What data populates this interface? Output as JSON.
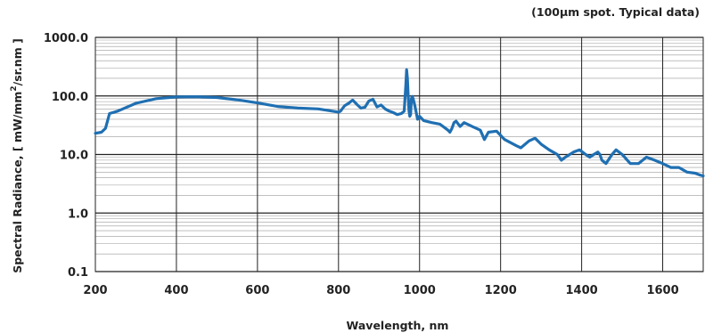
{
  "chart_data": {
    "type": "line",
    "annotation": "(100µm spot. Typical data)",
    "xlabel": "Wavelength, nm",
    "ylabel": {
      "main": "Spectral Radiance, [ mW/mm",
      "sup": "2",
      "tail": "/sr.nm ]"
    },
    "xlim": [
      200,
      1700
    ],
    "ylim": [
      0.1,
      1000
    ],
    "y_scale": "log",
    "grid": true,
    "x_ticks": [
      200,
      400,
      600,
      800,
      1000,
      1200,
      1400,
      1600
    ],
    "y_ticks": [
      {
        "value": 0.1,
        "label": "0.1"
      },
      {
        "value": 1,
        "label": "1.0"
      },
      {
        "value": 10,
        "label": "10.0"
      },
      {
        "value": 100,
        "label": "100.0"
      },
      {
        "value": 1000,
        "label": "1000.0"
      }
    ],
    "series": [
      {
        "color": "#1f6fb2",
        "x": [
          200,
          215,
          225,
          235,
          255,
          300,
          350,
          400,
          450,
          500,
          550,
          600,
          650,
          700,
          750,
          800,
          805,
          815,
          825,
          835,
          845,
          855,
          865,
          875,
          885,
          895,
          905,
          915,
          925,
          935,
          945,
          955,
          962,
          966,
          968,
          970,
          972,
          974,
          976,
          978,
          980,
          982,
          984,
          988,
          995,
          1000,
          1010,
          1030,
          1050,
          1070,
          1075,
          1080,
          1085,
          1090,
          1100,
          1110,
          1130,
          1150,
          1160,
          1170,
          1190,
          1210,
          1240,
          1250,
          1270,
          1285,
          1300,
          1320,
          1340,
          1350,
          1360,
          1380,
          1395,
          1410,
          1420,
          1430,
          1440,
          1445,
          1450,
          1460,
          1475,
          1480,
          1485,
          1500,
          1520,
          1540,
          1560,
          1580,
          1600,
          1620,
          1640,
          1660,
          1680,
          1690,
          1700
        ],
        "y": [
          23,
          24,
          28,
          50,
          55,
          75,
          90,
          96,
          97,
          94,
          86,
          76,
          66,
          62,
          60,
          53,
          55,
          68,
          75,
          85,
          72,
          62,
          64,
          82,
          88,
          65,
          70,
          60,
          55,
          52,
          48,
          50,
          55,
          150,
          280,
          200,
          100,
          55,
          45,
          48,
          90,
          98,
          90,
          70,
          40,
          45,
          38,
          35,
          33,
          26,
          24,
          28,
          35,
          37,
          30,
          35,
          30,
          26,
          18,
          24,
          25,
          18,
          14,
          13,
          17,
          19,
          15,
          12,
          10,
          8,
          9,
          11,
          12,
          10,
          9,
          10,
          11,
          10,
          8,
          7,
          10,
          11,
          12,
          10,
          7,
          7,
          9,
          8,
          7,
          6,
          6,
          5,
          4.8,
          4.5,
          4.3
        ]
      }
    ]
  }
}
